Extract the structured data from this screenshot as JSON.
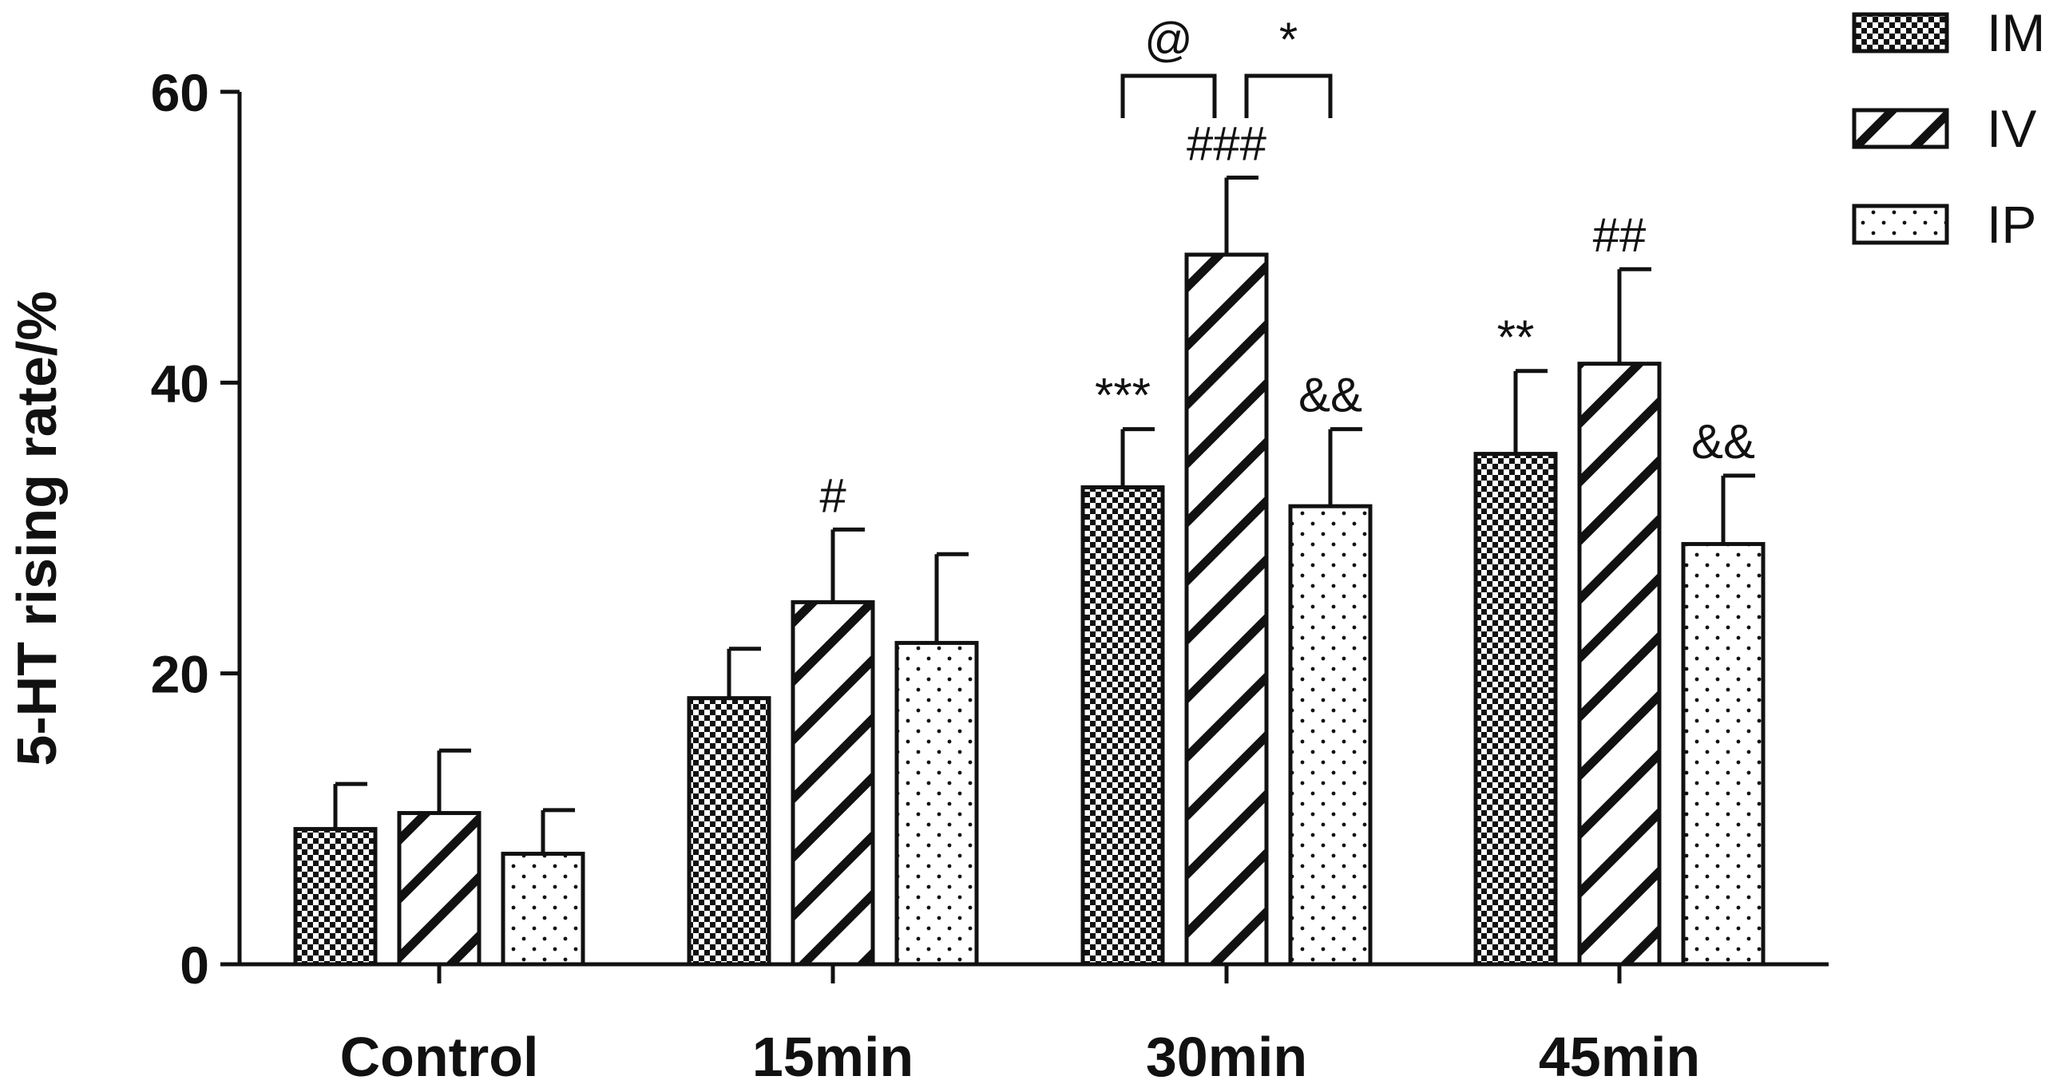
{
  "chart_data": {
    "type": "bar",
    "title": "",
    "xlabel": "",
    "ylabel": "5-HT rising rate/%",
    "ylim": [
      0,
      60
    ],
    "yticks": [
      0,
      20,
      40,
      60
    ],
    "grid": false,
    "legend_position": "top-right",
    "categories": [
      "Control",
      "15min",
      "30min",
      "45min"
    ],
    "series": [
      {
        "name": "IM",
        "pattern": "checker",
        "values": [
          9.3,
          18.3,
          32.8,
          35.1
        ],
        "errors": [
          3.1,
          3.4,
          4.0,
          5.7
        ],
        "annotations": [
          "",
          "",
          "***",
          "**"
        ]
      },
      {
        "name": "IV",
        "pattern": "diagonal",
        "values": [
          10.4,
          24.9,
          48.8,
          41.3
        ],
        "errors": [
          4.3,
          5.0,
          5.3,
          6.5
        ],
        "annotations": [
          "",
          "#",
          "###",
          "##"
        ]
      },
      {
        "name": "IP",
        "pattern": "dots",
        "values": [
          7.6,
          22.1,
          31.5,
          28.9
        ],
        "errors": [
          3.0,
          6.1,
          5.3,
          4.7
        ],
        "annotations": [
          "",
          "",
          "&&",
          "&&"
        ]
      }
    ],
    "brackets": [
      {
        "category": "30min",
        "from_series": "IM",
        "to_series": "IV",
        "label": "@"
      },
      {
        "category": "30min",
        "from_series": "IV",
        "to_series": "IP",
        "label": "*"
      }
    ]
  }
}
